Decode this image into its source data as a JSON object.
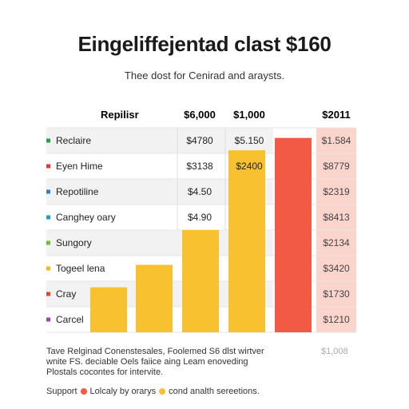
{
  "chart_data": {
    "type": "table",
    "title": "Eingeliffejentad clast $160",
    "subtitle": "Thee dost for Cenirad and araysts.",
    "header": {
      "row_label": "Repilisr",
      "col1": "$6,000",
      "col2": "$1,000",
      "col3": "$2011"
    },
    "rows": [
      {
        "label": "Reclaire",
        "dot_color": "#2e9d47",
        "col1": "$4780",
        "col2": "$5.150",
        "col3": "$1.584"
      },
      {
        "label": "Eyen Hime",
        "dot_color": "#e03b2b",
        "col1": "$3138",
        "col2": "$2400",
        "col3": "$8779"
      },
      {
        "label": "Repotiline",
        "dot_color": "#2b7fd4",
        "col1": "$4.50",
        "col2": "",
        "col3": "$2319"
      },
      {
        "label": "Canghey oary",
        "dot_color": "#1ea0c4",
        "col1": "$4.90",
        "col2": "",
        "col3": "$8413"
      },
      {
        "label": "Sungory",
        "dot_color": "#6cbf3a",
        "col1": "",
        "col2": "",
        "col3": "$2134"
      },
      {
        "label": "Togeel lena",
        "dot_color": "#f3b820",
        "col1": "",
        "col2": "",
        "col3": "$3420"
      },
      {
        "label": "Cray",
        "dot_color": "#e0472f",
        "col1": "",
        "col2": "",
        "col3": "$1730"
      },
      {
        "label": "Carcel",
        "dot_color": "#b03ab8",
        "col1": "",
        "col2": "",
        "col3": "$1210"
      }
    ],
    "bars": {
      "yellow": [
        0.22,
        0.33,
        0.5,
        0.89
      ],
      "red": 0.97
    },
    "colors": {
      "yellow": "#f7c12f",
      "red": "#f25a45",
      "highlight_column": "#fbd4cc",
      "band": "#f2f2f2"
    }
  },
  "footnote": {
    "line1": "Tave Relginad Conenstesales, Foolemed S6 dlst wirtver",
    "line2": "wnite FS. deciable Oels faiice aing Leam enoveding",
    "line3": "Plostals cocontes for intervite.",
    "right": "$1,008"
  },
  "legend": {
    "prefix": "Support",
    "item1": "Lolcaly by orarys",
    "item2": "cond analth sereetions.",
    "color1": "#f25a45",
    "color2": "#f7c12f"
  }
}
